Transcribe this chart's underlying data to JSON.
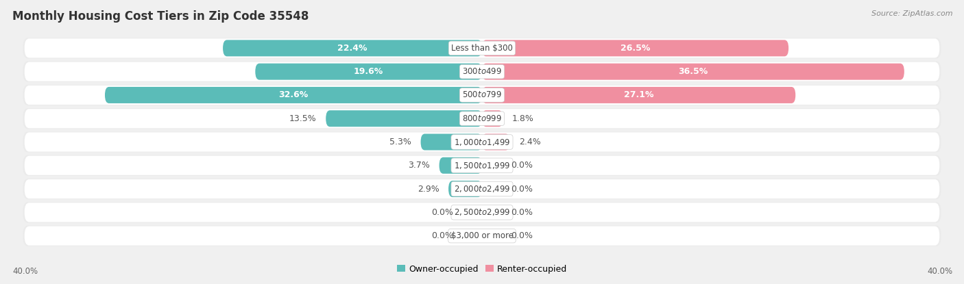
{
  "title": "Monthly Housing Cost Tiers in Zip Code 35548",
  "source": "Source: ZipAtlas.com",
  "categories": [
    "Less than $300",
    "$300 to $499",
    "$500 to $799",
    "$800 to $999",
    "$1,000 to $1,499",
    "$1,500 to $1,999",
    "$2,000 to $2,499",
    "$2,500 to $2,999",
    "$3,000 or more"
  ],
  "owner_values": [
    22.4,
    19.6,
    32.6,
    13.5,
    5.3,
    3.7,
    2.9,
    0.0,
    0.0
  ],
  "renter_values": [
    26.5,
    36.5,
    27.1,
    1.8,
    2.4,
    0.0,
    0.0,
    0.0,
    0.0
  ],
  "owner_color": "#5bbcb8",
  "renter_color": "#f08fa0",
  "fig_bg": "#f0f0f0",
  "row_bg": "#ffffff",
  "max_val": 40.0,
  "axis_label_left": "40.0%",
  "axis_label_right": "40.0%",
  "title_fontsize": 12,
  "source_fontsize": 8,
  "label_fontsize": 9,
  "cat_fontsize": 8.5
}
